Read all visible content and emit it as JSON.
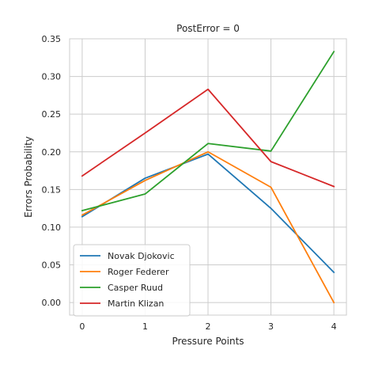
{
  "chart_data": {
    "type": "line",
    "title": "PostError = 0",
    "xlabel": "Pressure Points",
    "ylabel": "Errors Probability",
    "x": [
      0,
      1,
      2,
      3,
      4
    ],
    "xlim": [
      -0.2,
      4.2
    ],
    "ylim": [
      -0.0167,
      0.35
    ],
    "xticks": [
      0,
      1,
      2,
      3,
      4
    ],
    "yticks": [
      0.0,
      0.05,
      0.1,
      0.15,
      0.2,
      0.25,
      0.3,
      0.35
    ],
    "ytick_labels": [
      "0.00",
      "0.05",
      "0.10",
      "0.15",
      "0.20",
      "0.25",
      "0.30",
      "0.35"
    ],
    "grid": true,
    "legend_position": "lower-left",
    "series": [
      {
        "name": "Novak Djokovic",
        "color": "#1f77b4",
        "values": [
          0.114,
          0.165,
          0.197,
          0.125,
          0.04
        ]
      },
      {
        "name": "Roger Federer",
        "color": "#ff7f0e",
        "values": [
          0.116,
          0.162,
          0.2,
          0.153,
          0.0
        ]
      },
      {
        "name": "Casper Ruud",
        "color": "#2ca02c",
        "values": [
          0.122,
          0.144,
          0.211,
          0.201,
          0.333
        ]
      },
      {
        "name": "Martin Klizan",
        "color": "#d62728",
        "values": [
          0.168,
          0.225,
          0.283,
          0.187,
          0.154
        ]
      }
    ]
  }
}
